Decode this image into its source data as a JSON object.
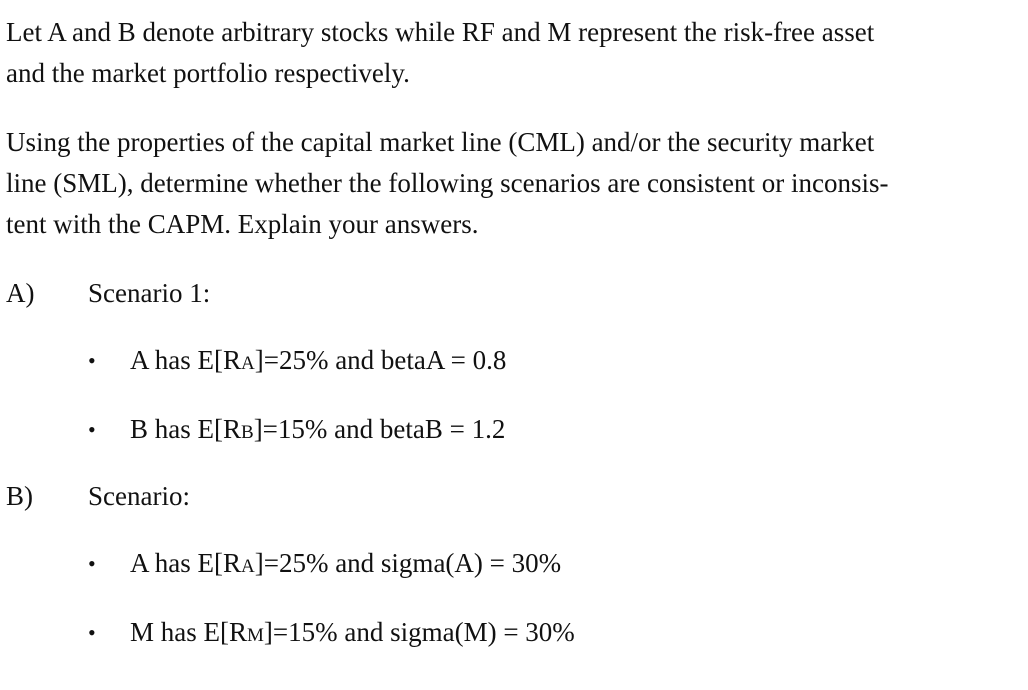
{
  "intro": {
    "line1": "Let A and B denote arbitrary stocks while RF and M represent the risk-free asset",
    "line2": "and the market portfolio respectively."
  },
  "question": {
    "line1": "Using the properties of the capital market line (CML) and/or the security market",
    "line2": "line (SML), determine whether the following scenarios are consistent or inconsis-",
    "line3": "tent with the CAPM.   Explain your answers."
  },
  "sections": [
    {
      "label": "A)",
      "title": "Scenario 1:",
      "bullets": [
        {
          "bullet": "•",
          "pre": "A has E[R",
          "sub": "A",
          "post": "]=25% and betaA = 0.8"
        },
        {
          "bullet": "•",
          "pre": "B has E[R",
          "sub": "B",
          "post": "]=15% and betaB = 1.2"
        }
      ]
    },
    {
      "label": "B)",
      "title": "Scenario:",
      "bullets": [
        {
          "bullet": "•",
          "pre": "A has E[R",
          "sub": "A",
          "post": "]=25% and sigma(A) = 30%"
        },
        {
          "bullet": "•",
          "pre": "M has E[R",
          "sub": "M",
          "post": "]=15% and sigma(M) = 30%"
        }
      ]
    }
  ]
}
